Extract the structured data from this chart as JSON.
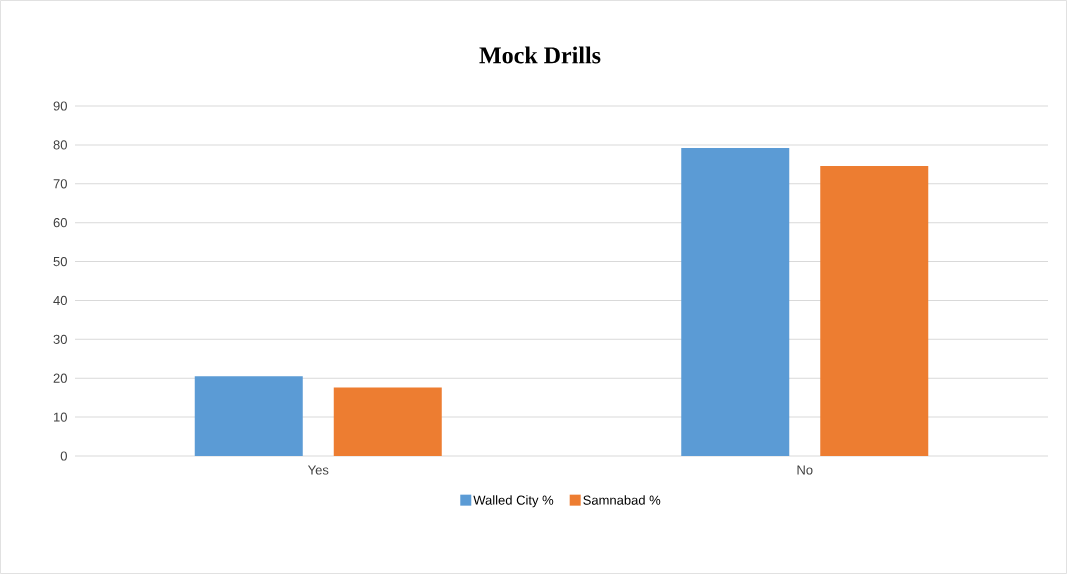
{
  "chart_data": {
    "type": "bar",
    "title": "Mock Drills",
    "categories": [
      "Yes",
      "No"
    ],
    "series": [
      {
        "name": "Walled City %",
        "color": "#5b9bd5",
        "values": [
          20.5,
          79.2
        ]
      },
      {
        "name": "Samnabad %",
        "color": "#ed7d31",
        "values": [
          17.6,
          74.6
        ]
      }
    ],
    "ylim": [
      0,
      90
    ],
    "yticks": [
      0,
      10,
      20,
      30,
      40,
      50,
      60,
      70,
      80,
      90
    ],
    "grid": "y",
    "legend": "bottom"
  }
}
